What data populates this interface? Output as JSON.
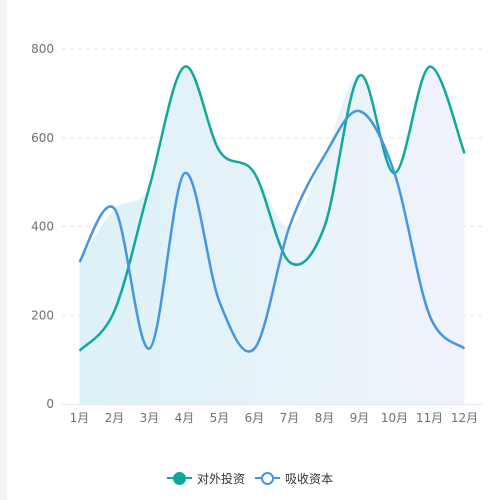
{
  "chart_data": {
    "type": "line",
    "smooth": true,
    "categories": [
      "1月",
      "2月",
      "3月",
      "4月",
      "5月",
      "6月",
      "7月",
      "8月",
      "9月",
      "10月",
      "11月",
      "12月"
    ],
    "ylim": [
      0,
      800
    ],
    "yticks": [
      0,
      200,
      400,
      600,
      800
    ],
    "grid": {
      "horizontal": true,
      "style": "dashed"
    },
    "legend_position": "bottom-center",
    "series": [
      {
        "name": "对外投资",
        "color": "#0fa89a",
        "values": [
          120,
          210,
          490,
          760,
          570,
          520,
          320,
          400,
          740,
          520,
          760,
          565
        ]
      },
      {
        "name": "吸收资本",
        "color": "#4596e2",
        "values": [
          320,
          440,
          125,
          520,
          230,
          125,
          400,
          560,
          660,
          520,
          200,
          125
        ]
      }
    ]
  }
}
